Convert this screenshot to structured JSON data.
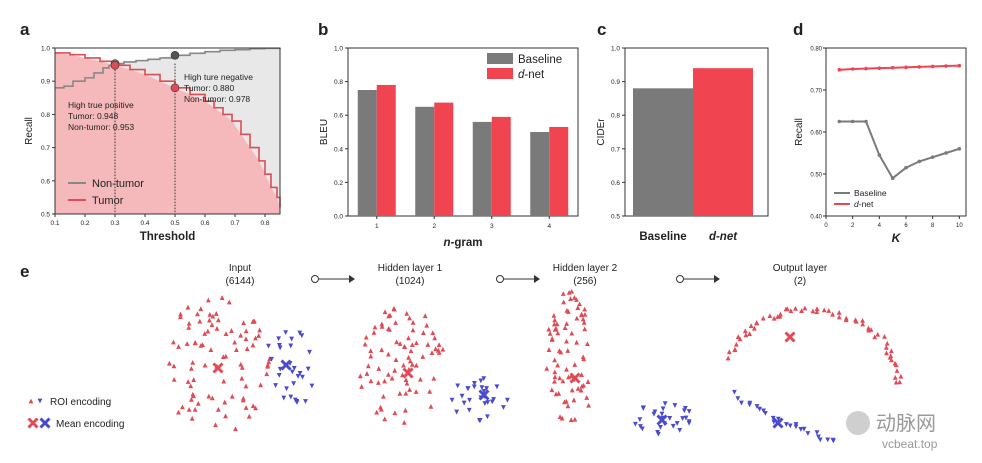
{
  "panels": {
    "a": "a",
    "b": "b",
    "c": "c",
    "d": "d",
    "e": "e"
  },
  "chart_data": [
    {
      "id": "a",
      "type": "line",
      "xlabel": "Threshold",
      "ylabel": "Recall",
      "xlim": [
        0.1,
        0.85
      ],
      "ylim": [
        0.5,
        1.0
      ],
      "xticks": [
        "0.1",
        "0.2",
        "0.3",
        "0.4",
        "0.5",
        "0.6",
        "0.7",
        "0.8"
      ],
      "yticks": [
        "0.5",
        "0.6",
        "0.7",
        "0.8",
        "0.9",
        "1.0"
      ],
      "series": [
        {
          "name": "Non-tumor",
          "color": "#888888",
          "fill": "#e8e8e8",
          "x": [
            0.1,
            0.13,
            0.16,
            0.2,
            0.23,
            0.26,
            0.28,
            0.3,
            0.33,
            0.37,
            0.41,
            0.45,
            0.5,
            0.55,
            0.6,
            0.65,
            0.7,
            0.75,
            0.8,
            0.85
          ],
          "y": [
            0.88,
            0.885,
            0.9,
            0.91,
            0.925,
            0.94,
            0.947,
            0.953,
            0.958,
            0.962,
            0.966,
            0.97,
            0.978,
            0.984,
            0.989,
            0.993,
            0.995,
            0.998,
            0.999,
            1.0
          ]
        },
        {
          "name": "Tumor",
          "color": "#e04b55",
          "fill": "#f6b6b8",
          "x": [
            0.1,
            0.15,
            0.2,
            0.25,
            0.3,
            0.35,
            0.4,
            0.45,
            0.5,
            0.55,
            0.6,
            0.63,
            0.66,
            0.69,
            0.72,
            0.75,
            0.78,
            0.8,
            0.82,
            0.84,
            0.85
          ],
          "y": [
            0.985,
            0.98,
            0.97,
            0.96,
            0.948,
            0.935,
            0.92,
            0.9,
            0.88,
            0.86,
            0.84,
            0.82,
            0.8,
            0.78,
            0.74,
            0.7,
            0.66,
            0.62,
            0.58,
            0.55,
            0.52
          ]
        }
      ],
      "markers": [
        {
          "x": 0.3,
          "y": 0.953,
          "color": "#777777"
        },
        {
          "x": 0.3,
          "y": 0.948,
          "color": "#e04b55"
        },
        {
          "x": 0.5,
          "y": 0.978,
          "color": "#555555"
        },
        {
          "x": 0.5,
          "y": 0.88,
          "color": "#e04b55"
        }
      ],
      "annotations": {
        "positive": [
          "High true positive",
          "Tumor: 0.948",
          "Non-tumor: 0.953"
        ],
        "negative": [
          "High ture negative",
          "Tumor: 0.880",
          "Non-tumor: 0.978"
        ]
      },
      "legend": [
        "Non-tumor",
        "Tumor"
      ]
    },
    {
      "id": "b",
      "type": "bar",
      "xlabel_prefix": "n",
      "xlabel_suffix": "-gram",
      "ylabel": "BLEU",
      "ylim": [
        0.0,
        1.0
      ],
      "yticks": [
        "0.0",
        "0.2",
        "0.4",
        "0.6",
        "0.8",
        "1.0"
      ],
      "categories": [
        "1",
        "2",
        "3",
        "4"
      ],
      "series": [
        {
          "name": "Baseline",
          "color": "#7a7a7a",
          "values": [
            0.75,
            0.65,
            0.56,
            0.5
          ]
        },
        {
          "name": "d-net",
          "color": "#f04450",
          "values": [
            0.78,
            0.675,
            0.59,
            0.53
          ]
        }
      ],
      "legend": {
        "baseline": "Baseline",
        "dnet_italic": "d",
        "dnet_rest": "-net"
      }
    },
    {
      "id": "c",
      "type": "bar",
      "ylabel": "CIDEr",
      "ylim": [
        0.5,
        1.0
      ],
      "yticks": [
        "0.5",
        "0.6",
        "0.7",
        "0.8",
        "0.9",
        "1.0"
      ],
      "categories": [
        "Baseline",
        "d-net"
      ],
      "values": [
        0.88,
        0.94
      ],
      "colors": [
        "#7a7a7a",
        "#f04450"
      ]
    },
    {
      "id": "d",
      "type": "line",
      "xlabel": "K",
      "ylabel": "Recall",
      "xlim": [
        0,
        10.5
      ],
      "ylim": [
        0.4,
        0.8
      ],
      "xticks": [
        "0",
        "2",
        "4",
        "6",
        "8",
        "10"
      ],
      "yticks": [
        "0.40",
        "0.50",
        "0.60",
        "0.70",
        "0.80"
      ],
      "series": [
        {
          "name": "Baseline",
          "color": "#7a7a7a",
          "x": [
            1,
            2,
            3,
            4,
            5,
            6,
            7,
            8,
            9,
            10
          ],
          "y": [
            0.625,
            0.625,
            0.625,
            0.545,
            0.49,
            0.515,
            0.53,
            0.54,
            0.55,
            0.56
          ]
        },
        {
          "name": "d-net",
          "color": "#f04450",
          "x": [
            1,
            2,
            3,
            4,
            5,
            6,
            7,
            8,
            9,
            10
          ],
          "y": [
            0.748,
            0.75,
            0.751,
            0.752,
            0.753,
            0.754,
            0.755,
            0.756,
            0.757,
            0.758
          ]
        }
      ],
      "legend": {
        "baseline": "Baseline",
        "dnet_italic": "d",
        "dnet_rest": "-net"
      }
    }
  ],
  "embedding": {
    "layers": [
      {
        "title": "Input",
        "sub": "(6144)"
      },
      {
        "title": "Hidden layer 1",
        "sub": "(1024)"
      },
      {
        "title": "Hidden layer 2",
        "sub": "(256)"
      },
      {
        "title": "Output layer",
        "sub": "(2)"
      }
    ],
    "legend": {
      "roi": "ROI encoding",
      "mean": "Mean encoding"
    },
    "colors": {
      "roi_red": "#e04b55",
      "roi_blue": "#4a4ad0"
    }
  },
  "watermark": {
    "text": "动脉网",
    "url": "vcbeat.top"
  }
}
